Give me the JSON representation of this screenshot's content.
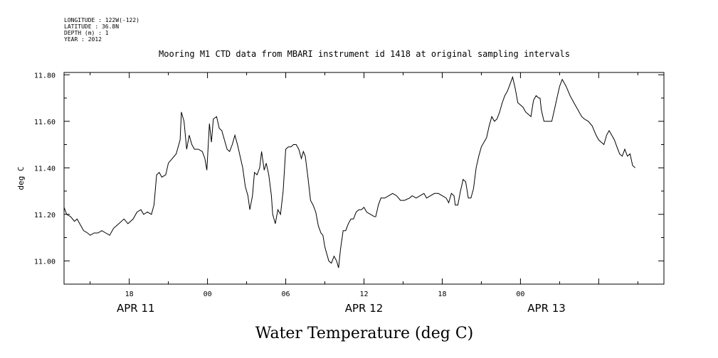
{
  "meta": {
    "lines": [
      "LONGITUDE : 122W(-122)",
      "LATITUDE : 36.8N",
      "DEPTH (m) : 1",
      "YEAR : 2012"
    ]
  },
  "caption": "Water Temperature (deg C)",
  "chart_data": {
    "type": "line",
    "title": "Mooring M1 CTD data from MBARI instrument id 1418 at original sampling intervals",
    "xlabel": "",
    "ylabel": "deg C",
    "x_unit": "hours since APR 11 00:00 (2012)",
    "xlim": [
      13,
      59
    ],
    "ylim": [
      10.9,
      11.81
    ],
    "grid": false,
    "y_ticks": [
      "11.00",
      "11.20",
      "11.40",
      "11.60",
      "11.80"
    ],
    "y_tick_values": [
      11.0,
      11.2,
      11.4,
      11.6,
      11.8
    ],
    "x_ticks": [
      {
        "label": "18",
        "x": 18
      },
      {
        "label": "00",
        "x": 24
      },
      {
        "label": "06",
        "x": 30
      },
      {
        "label": "12",
        "x": 36
      },
      {
        "label": "18",
        "x": 42
      },
      {
        "label": "00",
        "x": 48
      }
    ],
    "date_labels": [
      {
        "label": "APR 11",
        "x": 18.5
      },
      {
        "label": "APR 12",
        "x": 36
      },
      {
        "label": "APR 13",
        "x": 50
      }
    ],
    "series": [
      {
        "color": "#000000",
        "points": [
          [
            13.0,
            11.23
          ],
          [
            13.2,
            11.2
          ],
          [
            13.5,
            11.19
          ],
          [
            13.8,
            11.17
          ],
          [
            14.0,
            11.18
          ],
          [
            14.3,
            11.15
          ],
          [
            14.5,
            11.13
          ],
          [
            14.8,
            11.12
          ],
          [
            15.0,
            11.11
          ],
          [
            15.3,
            11.12
          ],
          [
            15.6,
            11.12
          ],
          [
            15.9,
            11.13
          ],
          [
            16.2,
            11.12
          ],
          [
            16.5,
            11.11
          ],
          [
            16.8,
            11.14
          ],
          [
            17.2,
            11.16
          ],
          [
            17.6,
            11.18
          ],
          [
            17.9,
            11.16
          ],
          [
            18.3,
            11.18
          ],
          [
            18.6,
            11.21
          ],
          [
            18.9,
            11.22
          ],
          [
            19.1,
            11.2
          ],
          [
            19.4,
            11.21
          ],
          [
            19.7,
            11.2
          ],
          [
            19.9,
            11.24
          ],
          [
            20.1,
            11.37
          ],
          [
            20.3,
            11.38
          ],
          [
            20.5,
            11.36
          ],
          [
            20.8,
            11.37
          ],
          [
            21.0,
            11.42
          ],
          [
            21.3,
            11.44
          ],
          [
            21.6,
            11.46
          ],
          [
            21.9,
            11.52
          ],
          [
            22.0,
            11.64
          ],
          [
            22.2,
            11.6
          ],
          [
            22.4,
            11.48
          ],
          [
            22.6,
            11.54
          ],
          [
            22.8,
            11.5
          ],
          [
            23.0,
            11.48
          ],
          [
            23.3,
            11.48
          ],
          [
            23.6,
            11.47
          ],
          [
            23.8,
            11.44
          ],
          [
            23.95,
            11.39
          ],
          [
            24.15,
            11.59
          ],
          [
            24.3,
            11.51
          ],
          [
            24.45,
            11.61
          ],
          [
            24.7,
            11.62
          ],
          [
            24.9,
            11.57
          ],
          [
            25.1,
            11.56
          ],
          [
            25.3,
            11.52
          ],
          [
            25.5,
            11.48
          ],
          [
            25.7,
            11.47
          ],
          [
            25.9,
            11.5
          ],
          [
            26.1,
            11.54
          ],
          [
            26.3,
            11.5
          ],
          [
            26.5,
            11.45
          ],
          [
            26.7,
            11.4
          ],
          [
            26.9,
            11.32
          ],
          [
            27.1,
            11.28
          ],
          [
            27.25,
            11.22
          ],
          [
            27.45,
            11.28
          ],
          [
            27.6,
            11.38
          ],
          [
            27.8,
            11.37
          ],
          [
            28.0,
            11.4
          ],
          [
            28.15,
            11.47
          ],
          [
            28.35,
            11.39
          ],
          [
            28.5,
            11.42
          ],
          [
            28.7,
            11.37
          ],
          [
            28.9,
            11.28
          ],
          [
            29.0,
            11.2
          ],
          [
            29.2,
            11.16
          ],
          [
            29.4,
            11.22
          ],
          [
            29.6,
            11.2
          ],
          [
            29.8,
            11.3
          ],
          [
            30.0,
            11.48
          ],
          [
            30.2,
            11.49
          ],
          [
            30.4,
            11.49
          ],
          [
            30.6,
            11.5
          ],
          [
            30.8,
            11.5
          ],
          [
            31.0,
            11.48
          ],
          [
            31.2,
            11.44
          ],
          [
            31.35,
            11.47
          ],
          [
            31.5,
            11.45
          ],
          [
            31.7,
            11.36
          ],
          [
            31.9,
            11.26
          ],
          [
            32.1,
            11.24
          ],
          [
            32.3,
            11.21
          ],
          [
            32.5,
            11.15
          ],
          [
            32.7,
            11.12
          ],
          [
            32.85,
            11.11
          ],
          [
            33.0,
            11.06
          ],
          [
            33.3,
            11.0
          ],
          [
            33.5,
            10.99
          ],
          [
            33.7,
            11.02
          ],
          [
            33.9,
            11.0
          ],
          [
            34.05,
            10.97
          ],
          [
            34.2,
            11.05
          ],
          [
            34.4,
            11.13
          ],
          [
            34.6,
            11.13
          ],
          [
            34.8,
            11.16
          ],
          [
            35.0,
            11.18
          ],
          [
            35.2,
            11.18
          ],
          [
            35.4,
            11.21
          ],
          [
            35.6,
            11.22
          ],
          [
            35.8,
            11.22
          ],
          [
            36.0,
            11.23
          ],
          [
            36.2,
            11.21
          ],
          [
            36.5,
            11.2
          ],
          [
            36.8,
            11.19
          ],
          [
            36.9,
            11.19
          ],
          [
            37.1,
            11.24
          ],
          [
            37.3,
            11.27
          ],
          [
            37.6,
            11.27
          ],
          [
            37.9,
            11.28
          ],
          [
            38.2,
            11.29
          ],
          [
            38.5,
            11.28
          ],
          [
            38.8,
            11.26
          ],
          [
            39.1,
            11.26
          ],
          [
            39.5,
            11.27
          ],
          [
            39.7,
            11.28
          ],
          [
            40.0,
            11.27
          ],
          [
            40.3,
            11.28
          ],
          [
            40.6,
            11.29
          ],
          [
            40.8,
            11.27
          ],
          [
            41.1,
            11.28
          ],
          [
            41.4,
            11.29
          ],
          [
            41.7,
            11.29
          ],
          [
            42.0,
            11.28
          ],
          [
            42.3,
            11.27
          ],
          [
            42.5,
            11.25
          ],
          [
            42.7,
            11.29
          ],
          [
            42.9,
            11.28
          ],
          [
            43.0,
            11.24
          ],
          [
            43.2,
            11.24
          ],
          [
            43.4,
            11.3
          ],
          [
            43.6,
            11.35
          ],
          [
            43.8,
            11.34
          ],
          [
            44.0,
            11.27
          ],
          [
            44.2,
            11.27
          ],
          [
            44.4,
            11.31
          ],
          [
            44.6,
            11.4
          ],
          [
            44.8,
            11.45
          ],
          [
            45.0,
            11.49
          ],
          [
            45.2,
            11.51
          ],
          [
            45.4,
            11.53
          ],
          [
            45.6,
            11.58
          ],
          [
            45.8,
            11.62
          ],
          [
            46.0,
            11.6
          ],
          [
            46.2,
            11.61
          ],
          [
            46.4,
            11.64
          ],
          [
            46.6,
            11.68
          ],
          [
            46.8,
            11.71
          ],
          [
            47.0,
            11.73
          ],
          [
            47.2,
            11.76
          ],
          [
            47.4,
            11.79
          ],
          [
            47.6,
            11.74
          ],
          [
            47.8,
            11.68
          ],
          [
            48.0,
            11.67
          ],
          [
            48.2,
            11.66
          ],
          [
            48.4,
            11.64
          ],
          [
            48.6,
            11.63
          ],
          [
            48.8,
            11.62
          ],
          [
            49.0,
            11.69
          ],
          [
            49.2,
            11.71
          ],
          [
            49.4,
            11.7
          ],
          [
            49.5,
            11.7
          ],
          [
            49.6,
            11.65
          ],
          [
            49.8,
            11.6
          ],
          [
            50.0,
            11.6
          ],
          [
            50.2,
            11.6
          ],
          [
            50.4,
            11.6
          ],
          [
            50.6,
            11.65
          ],
          [
            50.8,
            11.7
          ],
          [
            51.0,
            11.75
          ],
          [
            51.2,
            11.78
          ],
          [
            51.5,
            11.75
          ],
          [
            51.8,
            11.71
          ],
          [
            52.1,
            11.68
          ],
          [
            52.4,
            11.65
          ],
          [
            52.7,
            11.62
          ],
          [
            52.9,
            11.61
          ],
          [
            53.2,
            11.6
          ],
          [
            53.5,
            11.58
          ],
          [
            53.8,
            11.54
          ],
          [
            54.0,
            11.52
          ],
          [
            54.2,
            11.51
          ],
          [
            54.4,
            11.5
          ],
          [
            54.6,
            11.54
          ],
          [
            54.8,
            11.56
          ],
          [
            55.0,
            11.54
          ],
          [
            55.2,
            11.52
          ],
          [
            55.4,
            11.49
          ],
          [
            55.6,
            11.46
          ],
          [
            55.8,
            11.45
          ],
          [
            56.0,
            11.48
          ],
          [
            56.2,
            11.45
          ],
          [
            56.4,
            11.46
          ],
          [
            56.6,
            11.41
          ],
          [
            56.8,
            11.4
          ]
        ]
      }
    ]
  }
}
